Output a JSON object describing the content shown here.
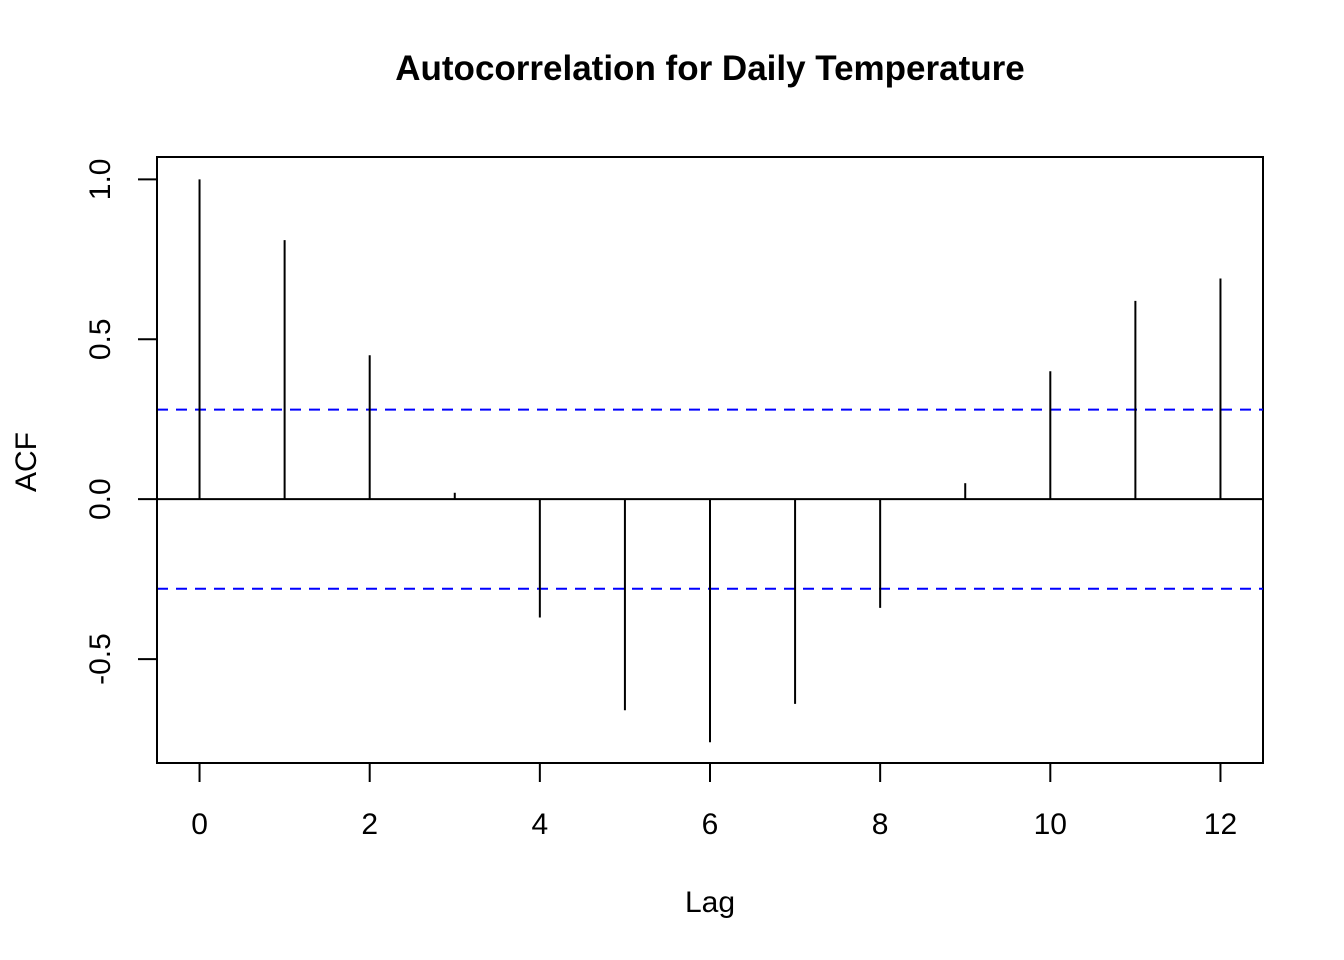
{
  "chart_data": {
    "type": "bar",
    "title": "Autocorrelation for Daily Temperature",
    "xlabel": "Lag",
    "ylabel": "ACF",
    "x": [
      0,
      1,
      2,
      3,
      4,
      5,
      6,
      7,
      8,
      9,
      10,
      11,
      12
    ],
    "values": [
      1.0,
      0.81,
      0.45,
      0.02,
      -0.37,
      -0.66,
      -0.76,
      -0.64,
      -0.34,
      0.05,
      0.4,
      0.62,
      0.69
    ],
    "confidence_bound": 0.28,
    "xlim": [
      -0.5,
      12.5
    ],
    "ylim": [
      -0.825,
      1.07
    ],
    "x_ticks": [
      0,
      2,
      4,
      6,
      8,
      10,
      12
    ],
    "x_tick_labels": [
      "0",
      "2",
      "4",
      "6",
      "8",
      "10",
      "12"
    ],
    "y_ticks": [
      -0.5,
      0.0,
      0.5,
      1.0
    ],
    "y_tick_labels": [
      "-0.5",
      "0.0",
      "0.5",
      "1.0"
    ],
    "grid": false,
    "legend": "none",
    "colors": {
      "bars": "#000000",
      "confidence": "#0000ff",
      "axes": "#000000"
    }
  }
}
